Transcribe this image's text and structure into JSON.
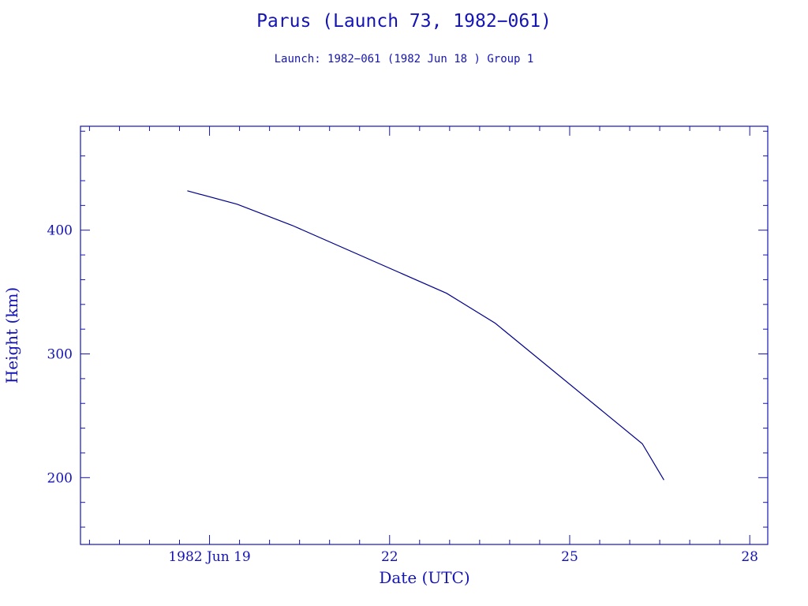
{
  "chart_data": {
    "type": "line",
    "title": "Parus (Launch 73, 1982−061)",
    "subtitle": "Launch: 1982−061  (1982 Jun 18 )  Group 1",
    "xlabel": "Date (UTC)",
    "ylabel": "Height (km)",
    "xlim": [
      16.85,
      28.3
    ],
    "ylim": [
      146,
      484
    ],
    "x_ticks": [
      {
        "value": 19,
        "label": "1982 Jun 19"
      },
      {
        "value": 22,
        "label": "22"
      },
      {
        "value": 25,
        "label": "25"
      },
      {
        "value": 28,
        "label": "28"
      }
    ],
    "x_minor_step": 0.5,
    "y_ticks": [
      {
        "value": 200,
        "label": "200"
      },
      {
        "value": 300,
        "label": "300"
      },
      {
        "value": 400,
        "label": "400"
      }
    ],
    "y_minor_step": 20,
    "grid": false,
    "series": [
      {
        "name": "Height",
        "color": "#00008b",
        "x": [
          18.63,
          19.46,
          20.38,
          22.95,
          23.76,
          26.21,
          26.57
        ],
        "y": [
          431.8,
          421.0,
          403.8,
          349.0,
          324.8,
          227.4,
          198.1
        ]
      }
    ]
  }
}
